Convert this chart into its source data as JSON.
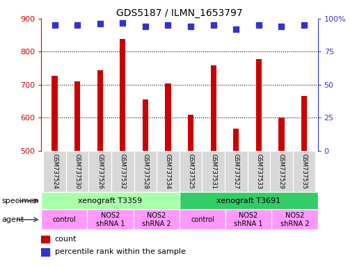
{
  "title": "GDS5187 / ILMN_1653797",
  "samples": [
    "GSM737524",
    "GSM737530",
    "GSM737526",
    "GSM737532",
    "GSM737528",
    "GSM737534",
    "GSM737525",
    "GSM737531",
    "GSM737527",
    "GSM737533",
    "GSM737529",
    "GSM737535"
  ],
  "counts": [
    728,
    710,
    745,
    838,
    655,
    705,
    610,
    758,
    567,
    778,
    600,
    667
  ],
  "percentiles": [
    95,
    95,
    96,
    97,
    94,
    95,
    94,
    95,
    92,
    95,
    94,
    95
  ],
  "ylim_left": [
    500,
    900
  ],
  "ylim_right": [
    0,
    100
  ],
  "yticks_left": [
    500,
    600,
    700,
    800,
    900
  ],
  "yticks_right": [
    0,
    25,
    50,
    75,
    100
  ],
  "bar_color": "#CC0000",
  "dot_color": "#3333CC",
  "specimen_groups": [
    {
      "label": "xenograft T3359",
      "start": 0,
      "end": 6,
      "color": "#AAFFAA"
    },
    {
      "label": "xenograft T3691",
      "start": 6,
      "end": 12,
      "color": "#33CC66"
    }
  ],
  "agent_groups": [
    {
      "label": "control",
      "start": 0,
      "end": 2,
      "color": "#FF99FF"
    },
    {
      "label": "NOS2\nshRNA 1",
      "start": 2,
      "end": 4,
      "color": "#FF99FF"
    },
    {
      "label": "NOS2\nshRNA 2",
      "start": 4,
      "end": 6,
      "color": "#FF99FF"
    },
    {
      "label": "control",
      "start": 6,
      "end": 8,
      "color": "#FF99FF"
    },
    {
      "label": "NOS2\nshRNA 1",
      "start": 8,
      "end": 10,
      "color": "#FF99FF"
    },
    {
      "label": "NOS2\nshRNA 2",
      "start": 10,
      "end": 12,
      "color": "#FF99FF"
    }
  ],
  "left_axis_color": "#CC0000",
  "right_axis_color": "#3333CC",
  "bg_color": "#FFFFFF",
  "label_bg_color": "#D8D8D8",
  "bar_width": 0.25
}
